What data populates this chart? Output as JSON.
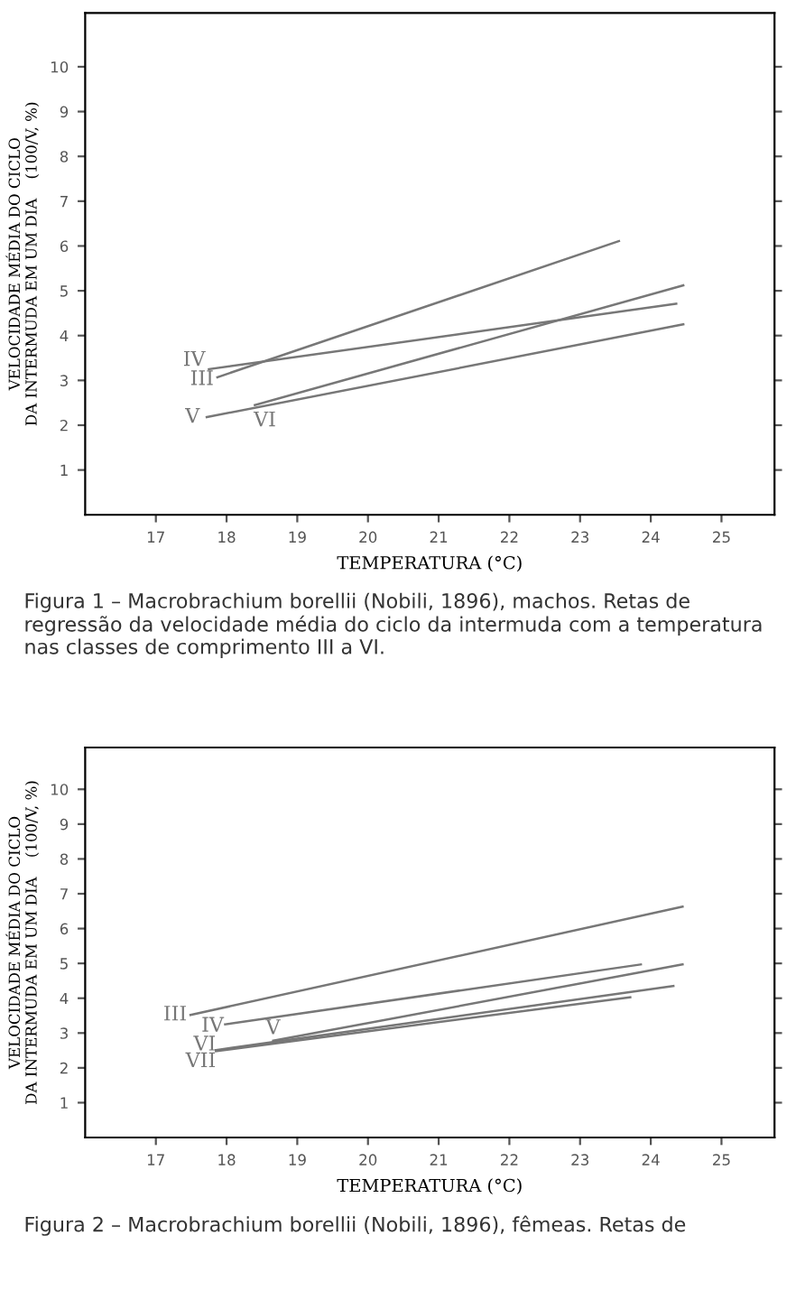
{
  "chart_data": [
    {
      "type": "line",
      "xlabel": "TEMPERATURA (°C)",
      "ylabel": "VELOCIDADE MÉDIA DO CICLO\nDA INTERMUDA EM UM DIA    (100/V, %)",
      "xlim": [
        16,
        25.75
      ],
      "xticks": [
        17,
        18,
        19,
        20,
        21,
        22,
        23,
        24,
        25
      ],
      "ylim": [
        0,
        11.2
      ],
      "yticks": [
        1,
        2,
        3,
        4,
        5,
        6,
        7,
        8,
        9,
        10
      ],
      "grid": false,
      "legend": false,
      "marker": "none",
      "line_style": "solid",
      "series": [
        {
          "name": "III",
          "color": "#777777",
          "x": [
            17.87,
            23.55
          ],
          "values": [
            3.07,
            6.11
          ]
        },
        {
          "name": "IV",
          "color": "#777777",
          "x": [
            17.75,
            24.36
          ],
          "values": [
            3.25,
            4.71
          ]
        },
        {
          "name": "V",
          "color": "#777777",
          "x": [
            17.72,
            24.46
          ],
          "values": [
            2.18,
            4.25
          ]
        },
        {
          "name": "VI",
          "color": "#777777",
          "x": [
            18.4,
            24.46
          ],
          "values": [
            2.45,
            5.12
          ]
        }
      ],
      "annotations": [
        "Figura 1 – Macrobrachium borellii (Nobili, 1896), machos. Retas de regressão da velocidade média do ciclo da intermuda com a temperatura nas classes de comprimento III a VI."
      ]
    },
    {
      "type": "line",
      "xlabel": "TEMPERATURA (°C)",
      "ylabel": "VELOCIDADE MÉDIA DO CICLO\nDA INTERMUDA EM UM DIA    (100/V, %)",
      "xlim": [
        16,
        25.75
      ],
      "xticks": [
        17,
        18,
        19,
        20,
        21,
        22,
        23,
        24,
        25
      ],
      "ylim": [
        0,
        11.2
      ],
      "yticks": [
        1,
        2,
        3,
        4,
        5,
        6,
        7,
        8,
        9,
        10
      ],
      "grid": false,
      "legend": false,
      "marker": "none",
      "line_style": "solid",
      "series": [
        {
          "name": "III",
          "color": "#777777",
          "x": [
            17.49,
            24.45
          ],
          "values": [
            3.52,
            6.63
          ]
        },
        {
          "name": "IV",
          "color": "#777777",
          "x": [
            17.98,
            23.86
          ],
          "values": [
            3.25,
            4.97
          ]
        },
        {
          "name": "V",
          "color": "#777777",
          "x": [
            18.66,
            24.45
          ],
          "values": [
            2.78,
            4.97
          ]
        },
        {
          "name": "VI",
          "color": "#777777",
          "x": [
            17.85,
            24.32
          ],
          "values": [
            2.51,
            4.35
          ]
        },
        {
          "name": "VII",
          "color": "#777777",
          "x": [
            17.85,
            23.71
          ],
          "values": [
            2.48,
            4.03
          ]
        }
      ],
      "annotations": [
        "Figura 2 – Macrobrachium borellii (Nobili, 1896), fêmeas. Retas de"
      ]
    }
  ]
}
